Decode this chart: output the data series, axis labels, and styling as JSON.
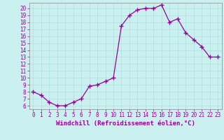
{
  "x": [
    0,
    1,
    2,
    3,
    4,
    5,
    6,
    7,
    8,
    9,
    10,
    11,
    12,
    13,
    14,
    15,
    16,
    17,
    18,
    19,
    20,
    21,
    22,
    23
  ],
  "y": [
    8,
    7.5,
    6.5,
    6,
    6,
    6.5,
    7,
    8.8,
    9,
    9.5,
    10,
    17.5,
    19,
    19.8,
    20,
    20,
    20.5,
    18,
    18.5,
    16.5,
    15.5,
    14.5,
    13,
    13
  ],
  "line_color": "#990099",
  "marker": "+",
  "marker_size": 4,
  "marker_lw": 1.0,
  "bg_color": "#caf0f0",
  "grid_color": "#b0dede",
  "xlabel": "Windchill (Refroidissement éolien,°C)",
  "xlim": [
    -0.5,
    23.5
  ],
  "ylim": [
    5.5,
    20.8
  ],
  "yticks": [
    6,
    7,
    8,
    9,
    10,
    11,
    12,
    13,
    14,
    15,
    16,
    17,
    18,
    19,
    20
  ],
  "xticks": [
    0,
    1,
    2,
    3,
    4,
    5,
    6,
    7,
    8,
    9,
    10,
    11,
    12,
    13,
    14,
    15,
    16,
    17,
    18,
    19,
    20,
    21,
    22,
    23
  ],
  "tick_fontsize": 5.5,
  "xlabel_fontsize": 6.5,
  "tick_color": "#990099",
  "xlabel_color": "#990099",
  "line_width": 0.9,
  "spine_color": "#888888"
}
